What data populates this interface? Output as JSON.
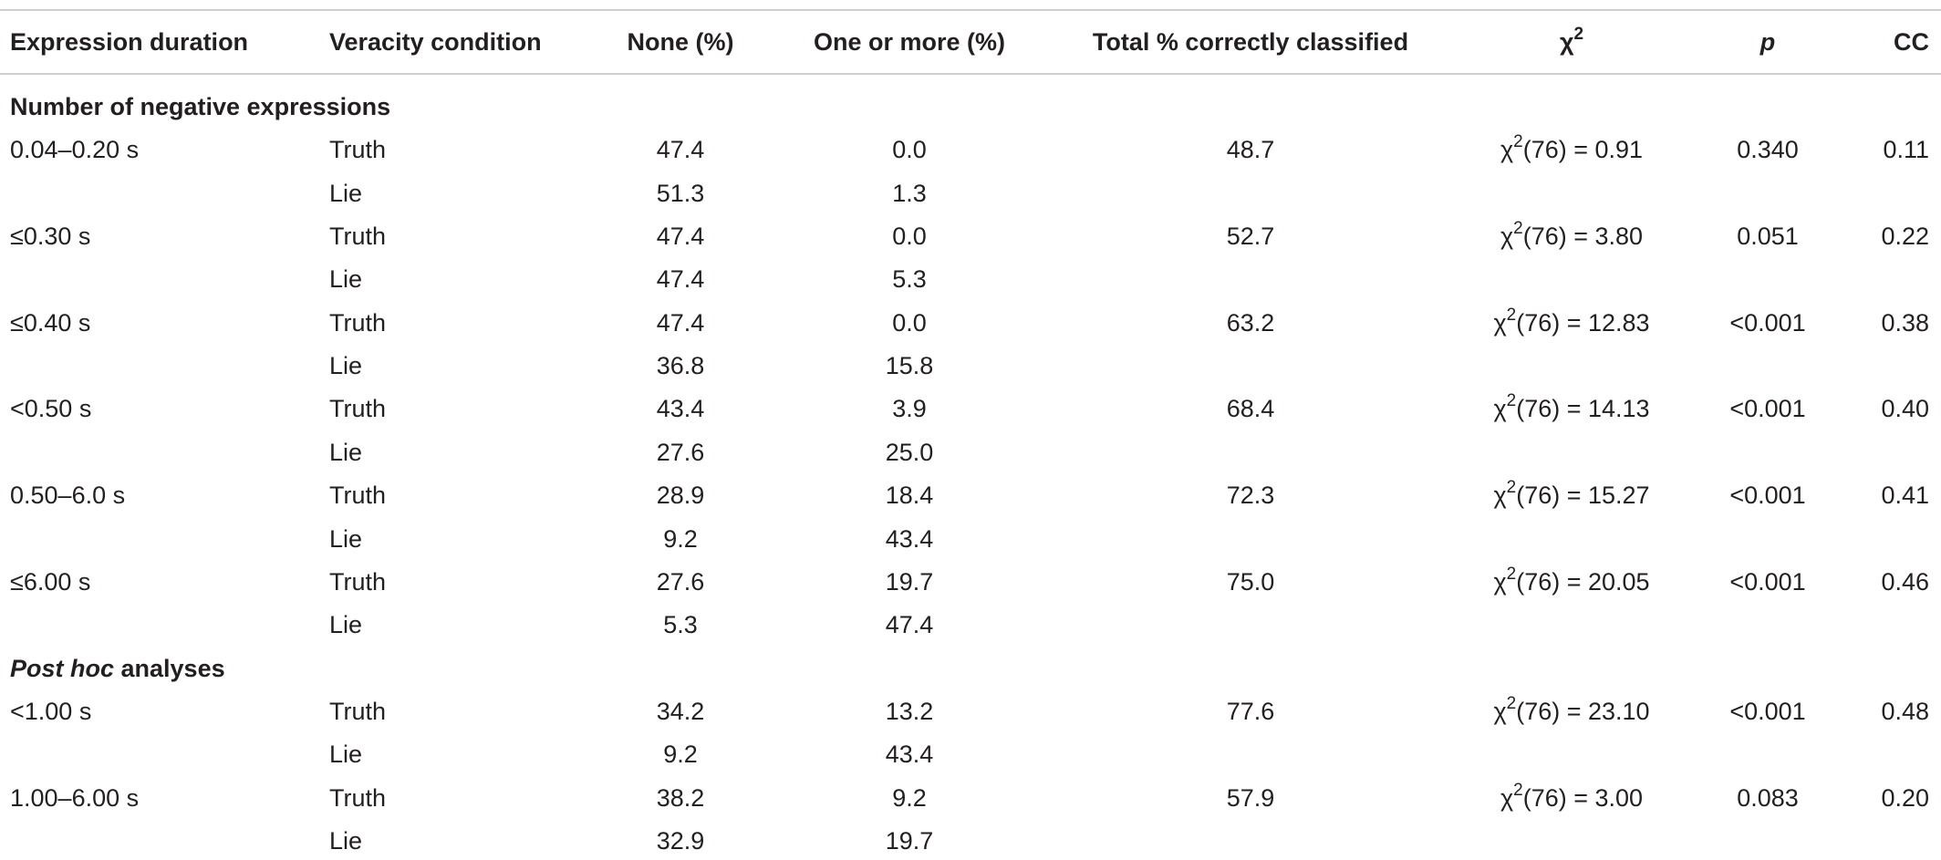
{
  "header": {
    "columns": [
      "Expression duration",
      "Veracity condition",
      "None (%)",
      "One or more (%)",
      "Total % correctly classified",
      {
        "symbol": "χ",
        "sup": "2"
      },
      "p",
      "CC"
    ]
  },
  "sections": [
    {
      "title": {
        "text": "Number of negative expressions"
      },
      "rows": [
        {
          "duration": "0.04–0.20 s",
          "conditions": [
            {
              "label": "Truth",
              "none": "47.4",
              "one": "0.0"
            },
            {
              "label": "Lie",
              "none": "51.3",
              "one": "1.3"
            }
          ],
          "total": "48.7",
          "chi": {
            "symbol": "χ",
            "sup": "2",
            "text": "(76) = 0.91"
          },
          "p": "0.340",
          "cc": "0.11"
        },
        {
          "duration": "≤0.30 s",
          "conditions": [
            {
              "label": "Truth",
              "none": "47.4",
              "one": "0.0"
            },
            {
              "label": "Lie",
              "none": "47.4",
              "one": "5.3"
            }
          ],
          "total": "52.7",
          "chi": {
            "symbol": "χ",
            "sup": "2",
            "text": "(76) = 3.80"
          },
          "p": "0.051",
          "cc": "0.22"
        },
        {
          "duration": "≤0.40 s",
          "conditions": [
            {
              "label": "Truth",
              "none": "47.4",
              "one": "0.0"
            },
            {
              "label": "Lie",
              "none": "36.8",
              "one": "15.8"
            }
          ],
          "total": "63.2",
          "chi": {
            "symbol": "χ",
            "sup": "2",
            "text": "(76) = 12.83"
          },
          "p": "<0.001",
          "cc": "0.38"
        },
        {
          "duration": "<0.50 s",
          "conditions": [
            {
              "label": "Truth",
              "none": "43.4",
              "one": "3.9"
            },
            {
              "label": "Lie",
              "none": "27.6",
              "one": "25.0"
            }
          ],
          "total": "68.4",
          "chi": {
            "symbol": "χ",
            "sup": "2",
            "text": "(76) = 14.13"
          },
          "p": "<0.001",
          "cc": "0.40"
        },
        {
          "duration": "0.50–6.0 s",
          "conditions": [
            {
              "label": "Truth",
              "none": "28.9",
              "one": "18.4"
            },
            {
              "label": "Lie",
              "none": "9.2",
              "one": "43.4"
            }
          ],
          "total": "72.3",
          "chi": {
            "symbol": "χ",
            "sup": "2",
            "text": "(76) = 15.27"
          },
          "p": "<0.001",
          "cc": "0.41"
        },
        {
          "duration": "≤6.00 s",
          "conditions": [
            {
              "label": "Truth",
              "none": "27.6",
              "one": "19.7"
            },
            {
              "label": "Lie",
              "none": "5.3",
              "one": "47.4"
            }
          ],
          "total": "75.0",
          "chi": {
            "symbol": "χ",
            "sup": "2",
            "text": "(76) = 20.05"
          },
          "p": "<0.001",
          "cc": "0.46"
        }
      ]
    },
    {
      "title": {
        "italic": "Post hoc",
        "text": " analyses"
      },
      "rows": [
        {
          "duration": "<1.00 s",
          "conditions": [
            {
              "label": "Truth",
              "none": "34.2",
              "one": "13.2"
            },
            {
              "label": "Lie",
              "none": "9.2",
              "one": "43.4"
            }
          ],
          "total": "77.6",
          "chi": {
            "symbol": "χ",
            "sup": "2",
            "text": "(76) = 23.10"
          },
          "p": "<0.001",
          "cc": "0.48"
        },
        {
          "duration": "1.00–6.00 s",
          "conditions": [
            {
              "label": "Truth",
              "none": "38.2",
              "one": "9.2"
            },
            {
              "label": "Lie",
              "none": "32.9",
              "one": "19.7"
            }
          ],
          "total": "57.9",
          "chi": {
            "symbol": "χ",
            "sup": "2",
            "text": "(76) = 3.00"
          },
          "p": "0.083",
          "cc": "0.20"
        }
      ]
    }
  ]
}
